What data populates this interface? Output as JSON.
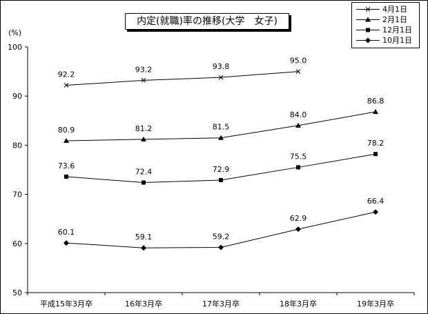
{
  "chart_data": {
    "type": "line",
    "title": "内定(就職)率の推移(大学　女子)",
    "unit_label": "(%)",
    "categories": [
      "平成15年3月卒",
      "16年3月卒",
      "17年3月卒",
      "18年3月卒",
      "19年3月卒"
    ],
    "ylim": [
      50,
      100
    ],
    "yticks": [
      50,
      60,
      70,
      80,
      90,
      100
    ],
    "grid": false,
    "legend_position": "top-right",
    "series": [
      {
        "name": "4月1日",
        "marker": "x",
        "values": [
          92.2,
          93.2,
          93.8,
          95.0,
          null
        ],
        "labels": [
          "92.2",
          "93.2",
          "93.8",
          "95.0",
          ""
        ]
      },
      {
        "name": "2月1日",
        "marker": "triangle",
        "values": [
          80.9,
          81.2,
          81.5,
          84.0,
          86.8
        ],
        "labels": [
          "80.9",
          "81.2",
          "81.5",
          "84.0",
          "86.8"
        ]
      },
      {
        "name": "12月1日",
        "marker": "square",
        "values": [
          73.6,
          72.4,
          72.9,
          75.5,
          78.2
        ],
        "labels": [
          "73.6",
          "72.4",
          "72.9",
          "75.5",
          "78.2"
        ]
      },
      {
        "name": "10月1日",
        "marker": "diamond",
        "values": [
          60.1,
          59.1,
          59.2,
          62.9,
          66.4
        ],
        "labels": [
          "60.1",
          "59.1",
          "59.2",
          "62.9",
          "66.4"
        ]
      }
    ],
    "colors": {
      "line": "#000000",
      "marker": "#000000",
      "background": "#ffffff"
    }
  }
}
